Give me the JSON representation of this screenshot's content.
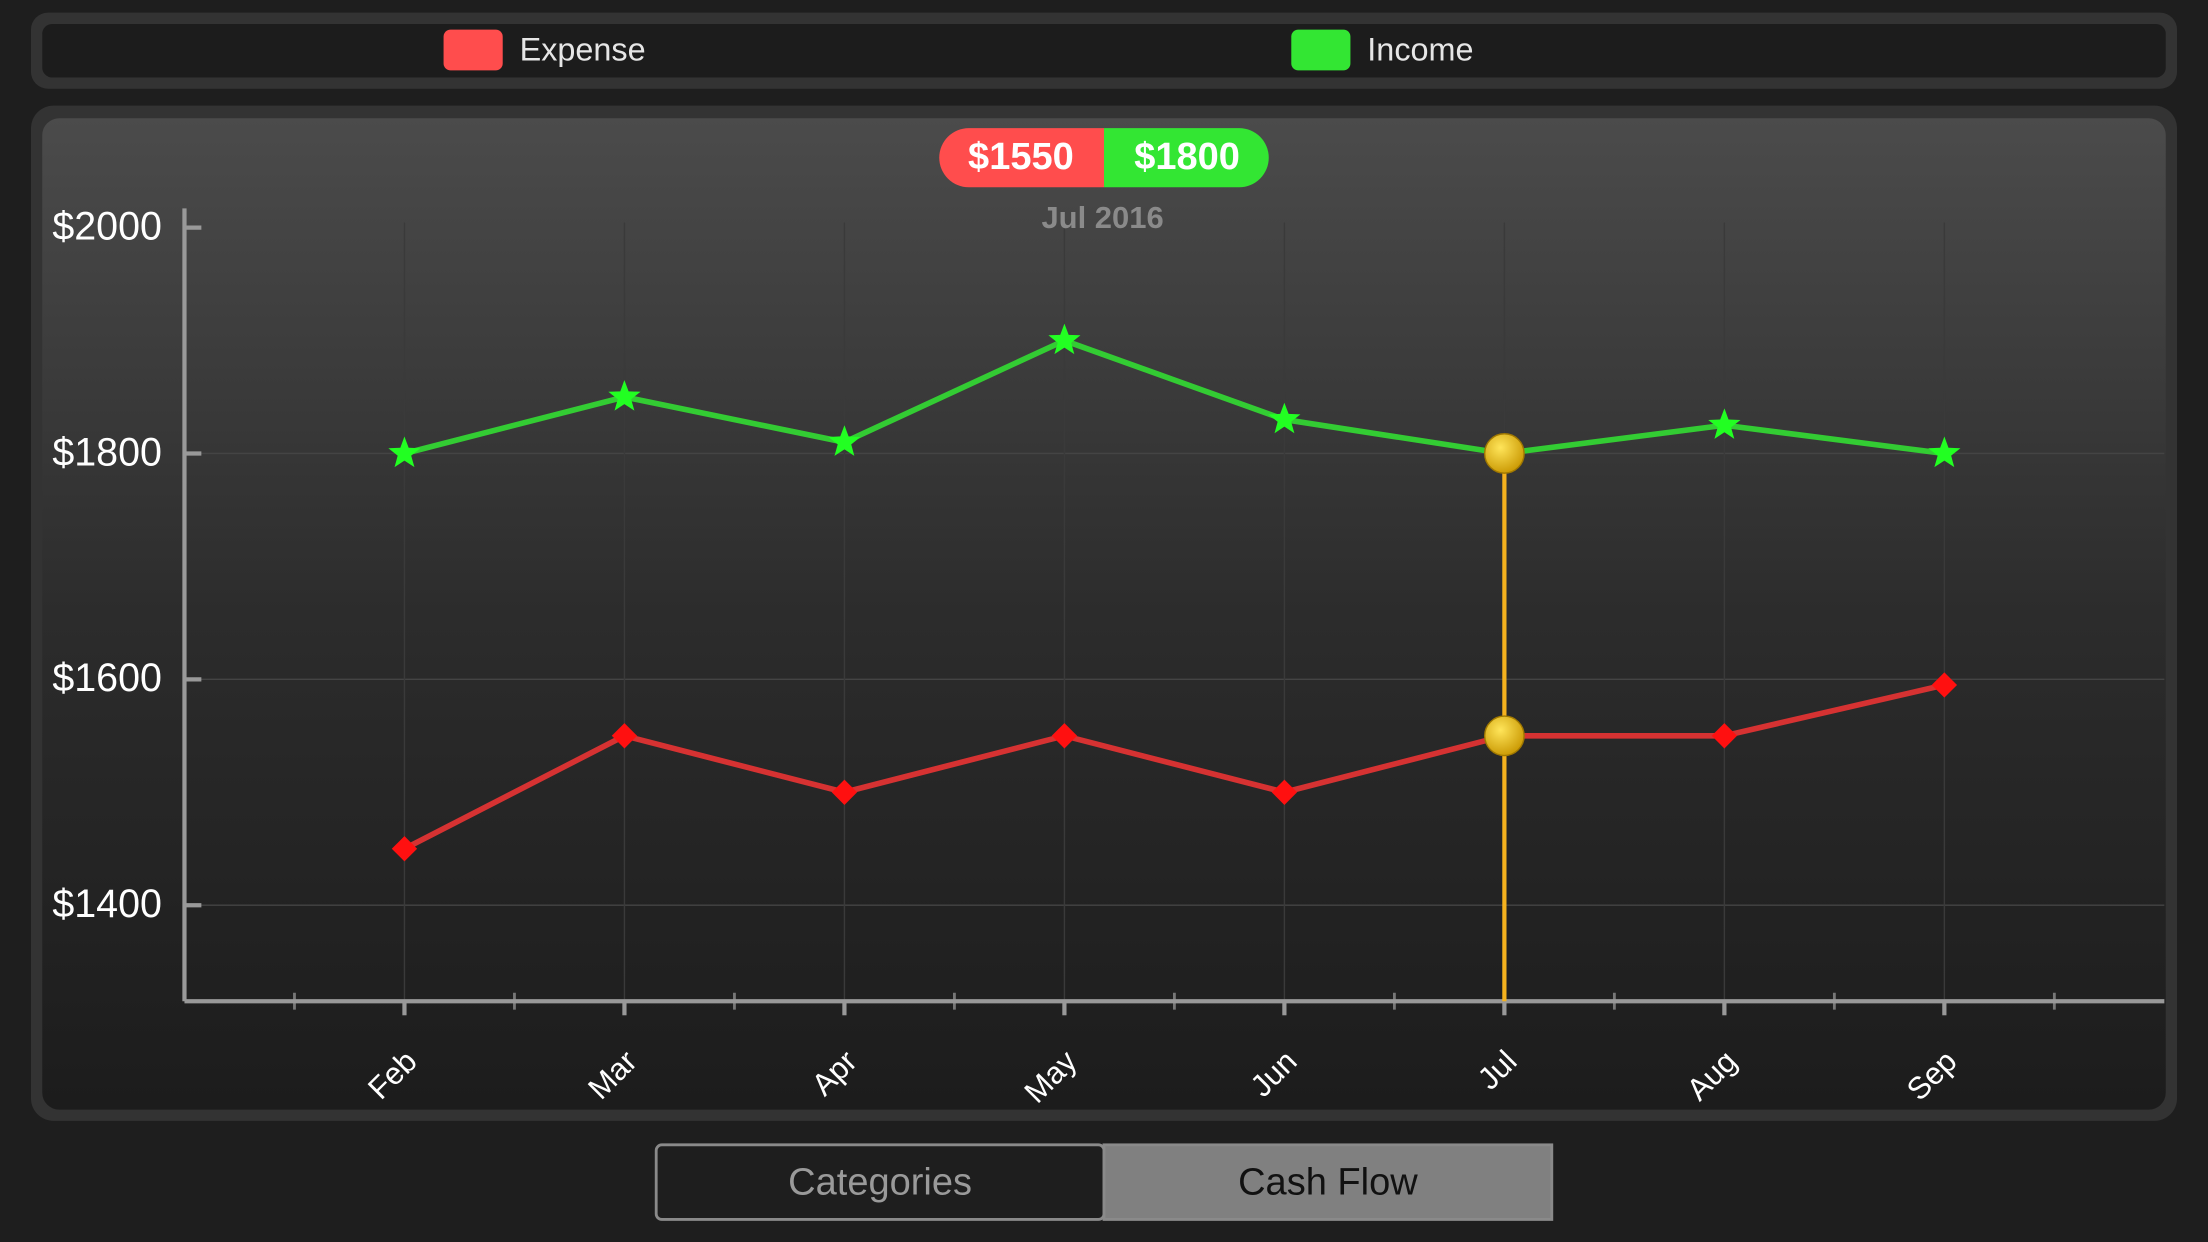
{
  "chart_data": {
    "type": "line",
    "categories": [
      "Feb",
      "Mar",
      "Apr",
      "May",
      "Jun",
      "Jul",
      "Aug",
      "Sep"
    ],
    "series": [
      {
        "name": "Expense",
        "color": "#ff4d4d",
        "line_color": "#d63232",
        "marker_color": "#ff1010",
        "marker": "diamond",
        "values": [
          1450,
          1550,
          1500,
          1550,
          1500,
          1550,
          1550,
          1595
        ]
      },
      {
        "name": "Income",
        "color": "#33e633",
        "line_color": "#33cc33",
        "marker_color": "#22ff22",
        "marker": "star",
        "values": [
          1800,
          1850,
          1810,
          1900,
          1830,
          1800,
          1825,
          1800
        ]
      }
    ],
    "ylim": [
      1315,
      2017
    ],
    "yticks": [
      {
        "value": 1400,
        "label": "$1400"
      },
      {
        "value": 1600,
        "label": "$1600"
      },
      {
        "value": 1800,
        "label": "$1800"
      },
      {
        "value": 2000,
        "label": "$2000"
      }
    ],
    "grid": true,
    "tooltip": {
      "values": [
        "$1550",
        "$1800"
      ],
      "date": "Jul 2016"
    }
  },
  "segmented_control": {
    "options": [
      "Categories",
      "Cash Flow"
    ],
    "selected": "Cash Flow"
  }
}
